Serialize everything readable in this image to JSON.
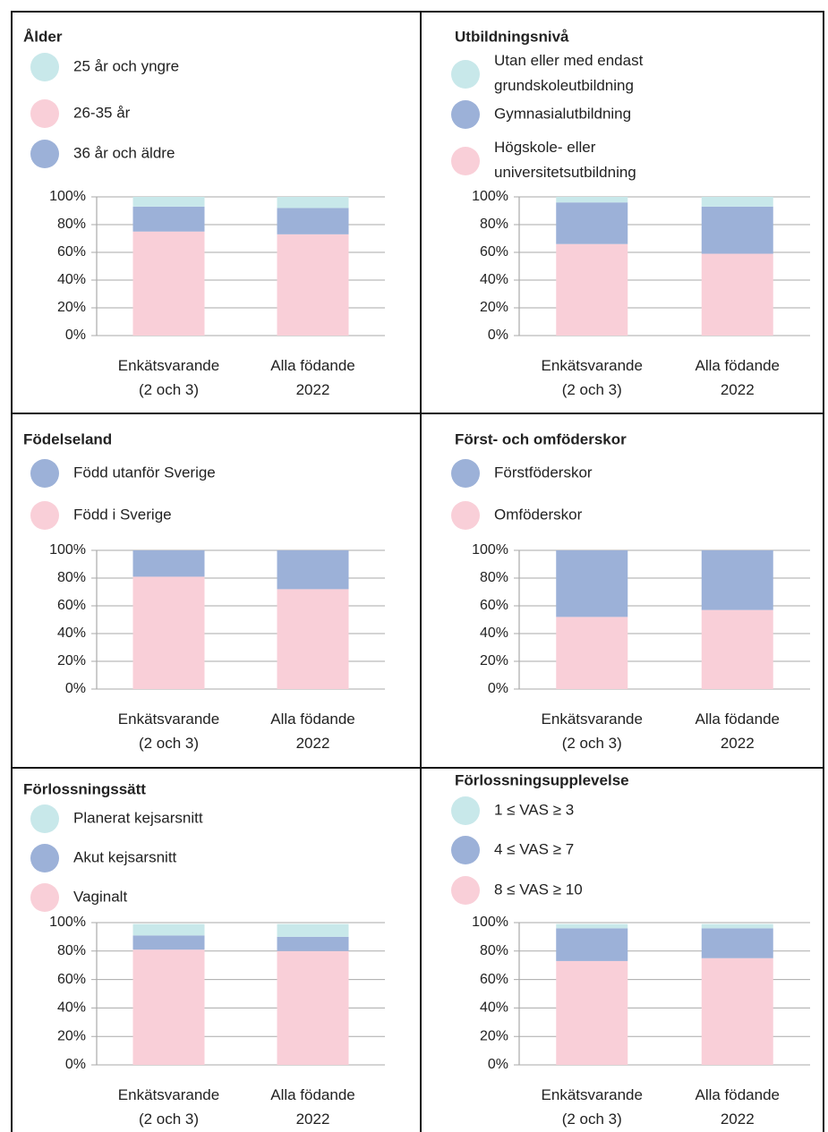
{
  "chart_data": [
    {
      "type": "bar",
      "title": "Ålder",
      "categories": [
        "Enkätsvarande\n(2 och 3)",
        "Alla födande\n2022"
      ],
      "series": [
        {
          "name": "25 år och yngre",
          "color": "#c8e8ea",
          "values": [
            7,
            8
          ]
        },
        {
          "name": "26-35 år",
          "color": "#f9cfd8",
          "values": [
            75,
            73
          ]
        },
        {
          "name": "36 år och äldre",
          "color": "#9cb1d8",
          "values": [
            18,
            19
          ]
        }
      ],
      "stack_order": [
        1,
        2,
        0
      ],
      "ylim": [
        0,
        100
      ],
      "yticks": [
        {
          "value": 0,
          "label": "0%"
        },
        {
          "value": 20,
          "label": "20%"
        },
        {
          "value": 40,
          "label": "40%"
        },
        {
          "value": 60,
          "label": "60%"
        },
        {
          "value": 80,
          "label": "80%"
        },
        {
          "value": 100,
          "label": "100%"
        }
      ],
      "grid": true
    },
    {
      "type": "bar",
      "title": "Utbildningsnivå",
      "categories": [
        "Enkätsvarande\n(2 och 3)",
        "Alla födande\n2022"
      ],
      "series": [
        {
          "name": "Utan eller med endast\ngrundskoleutbildning",
          "color": "#c8e8ea",
          "values": [
            4,
            7
          ]
        },
        {
          "name": "Gymnasialutbildning",
          "color": "#9cb1d8",
          "values": [
            30,
            34
          ]
        },
        {
          "name": "Högskole- eller\nuniversitetsutbildning",
          "color": "#f9cfd8",
          "values": [
            66,
            59
          ]
        }
      ],
      "stack_order": [
        2,
        1,
        0
      ],
      "ylim": [
        0,
        100
      ],
      "yticks": [
        {
          "value": 0,
          "label": "0%"
        },
        {
          "value": 20,
          "label": "20%"
        },
        {
          "value": 40,
          "label": "40%"
        },
        {
          "value": 60,
          "label": "60%"
        },
        {
          "value": 80,
          "label": "80%"
        },
        {
          "value": 100,
          "label": "100%"
        }
      ],
      "grid": true
    },
    {
      "type": "bar",
      "title": "Födelseland",
      "categories": [
        "Enkätsvarande\n(2 och 3)",
        "Alla födande\n2022"
      ],
      "series": [
        {
          "name": "Född utanför Sverige",
          "color": "#9cb1d8",
          "values": [
            19,
            28
          ]
        },
        {
          "name": "Född i Sverige",
          "color": "#f9cfd8",
          "values": [
            81,
            72
          ]
        }
      ],
      "stack_order": [
        1,
        0
      ],
      "ylim": [
        0,
        100
      ],
      "yticks": [
        {
          "value": 0,
          "label": "0%"
        },
        {
          "value": 20,
          "label": "20%"
        },
        {
          "value": 40,
          "label": "40%"
        },
        {
          "value": 60,
          "label": "60%"
        },
        {
          "value": 80,
          "label": "80%"
        },
        {
          "value": 100,
          "label": "100%"
        }
      ],
      "grid": true
    },
    {
      "type": "bar",
      "title": "Först- och omföderskor",
      "categories": [
        "Enkätsvarande\n(2 och 3)",
        "Alla födande\n2022"
      ],
      "series": [
        {
          "name": "Förstföderskor",
          "color": "#9cb1d8",
          "values": [
            48,
            43
          ]
        },
        {
          "name": "Omföderskor",
          "color": "#f9cfd8",
          "values": [
            52,
            57
          ]
        }
      ],
      "stack_order": [
        1,
        0
      ],
      "ylim": [
        0,
        100
      ],
      "yticks": [
        {
          "value": 0,
          "label": "0%"
        },
        {
          "value": 20,
          "label": "20%"
        },
        {
          "value": 40,
          "label": "40%"
        },
        {
          "value": 60,
          "label": "60%"
        },
        {
          "value": 80,
          "label": "80%"
        },
        {
          "value": 100,
          "label": "100%"
        }
      ],
      "grid": true
    },
    {
      "type": "bar",
      "title": "Förlossningssätt",
      "categories": [
        "Enkätsvarande\n(2 och 3)",
        "Alla födande\n2022"
      ],
      "series": [
        {
          "name": "Planerat kejsarsnitt",
          "color": "#c8e8ea",
          "values": [
            8,
            9
          ]
        },
        {
          "name": "Akut kejsarsnitt",
          "color": "#9cb1d8",
          "values": [
            10,
            10
          ]
        },
        {
          "name": "Vaginalt",
          "color": "#f9cfd8",
          "values": [
            81,
            80
          ]
        }
      ],
      "stack_order": [
        2,
        1,
        0
      ],
      "ylim": [
        0,
        100
      ],
      "yticks": [
        {
          "value": 0,
          "label": "0%"
        },
        {
          "value": 20,
          "label": "20%"
        },
        {
          "value": 40,
          "label": "40%"
        },
        {
          "value": 60,
          "label": "60%"
        },
        {
          "value": 80,
          "label": "80%"
        },
        {
          "value": 100,
          "label": "100%"
        }
      ],
      "grid": true
    },
    {
      "type": "bar",
      "title": "Förlossningsupplevelse",
      "categories": [
        "Enkätsvarande\n(2 och 3)",
        "Alla födande\n2022"
      ],
      "series": [
        {
          "name": "1 ≤ VAS ≥ 3",
          "color": "#c8e8ea",
          "values": [
            3,
            3
          ]
        },
        {
          "name": "4 ≤ VAS ≥ 7",
          "color": "#9cb1d8",
          "values": [
            23,
            21
          ]
        },
        {
          "name": "8 ≤ VAS ≥ 10",
          "color": "#f9cfd8",
          "values": [
            73,
            75
          ]
        }
      ],
      "stack_order": [
        2,
        1,
        0
      ],
      "ylim": [
        0,
        100
      ],
      "yticks": [
        {
          "value": 0,
          "label": "0%"
        },
        {
          "value": 20,
          "label": "20%"
        },
        {
          "value": 40,
          "label": "40%"
        },
        {
          "value": 60,
          "label": "60%"
        },
        {
          "value": 80,
          "label": "80%"
        },
        {
          "value": 100,
          "label": "100%"
        }
      ],
      "grid": true
    }
  ]
}
